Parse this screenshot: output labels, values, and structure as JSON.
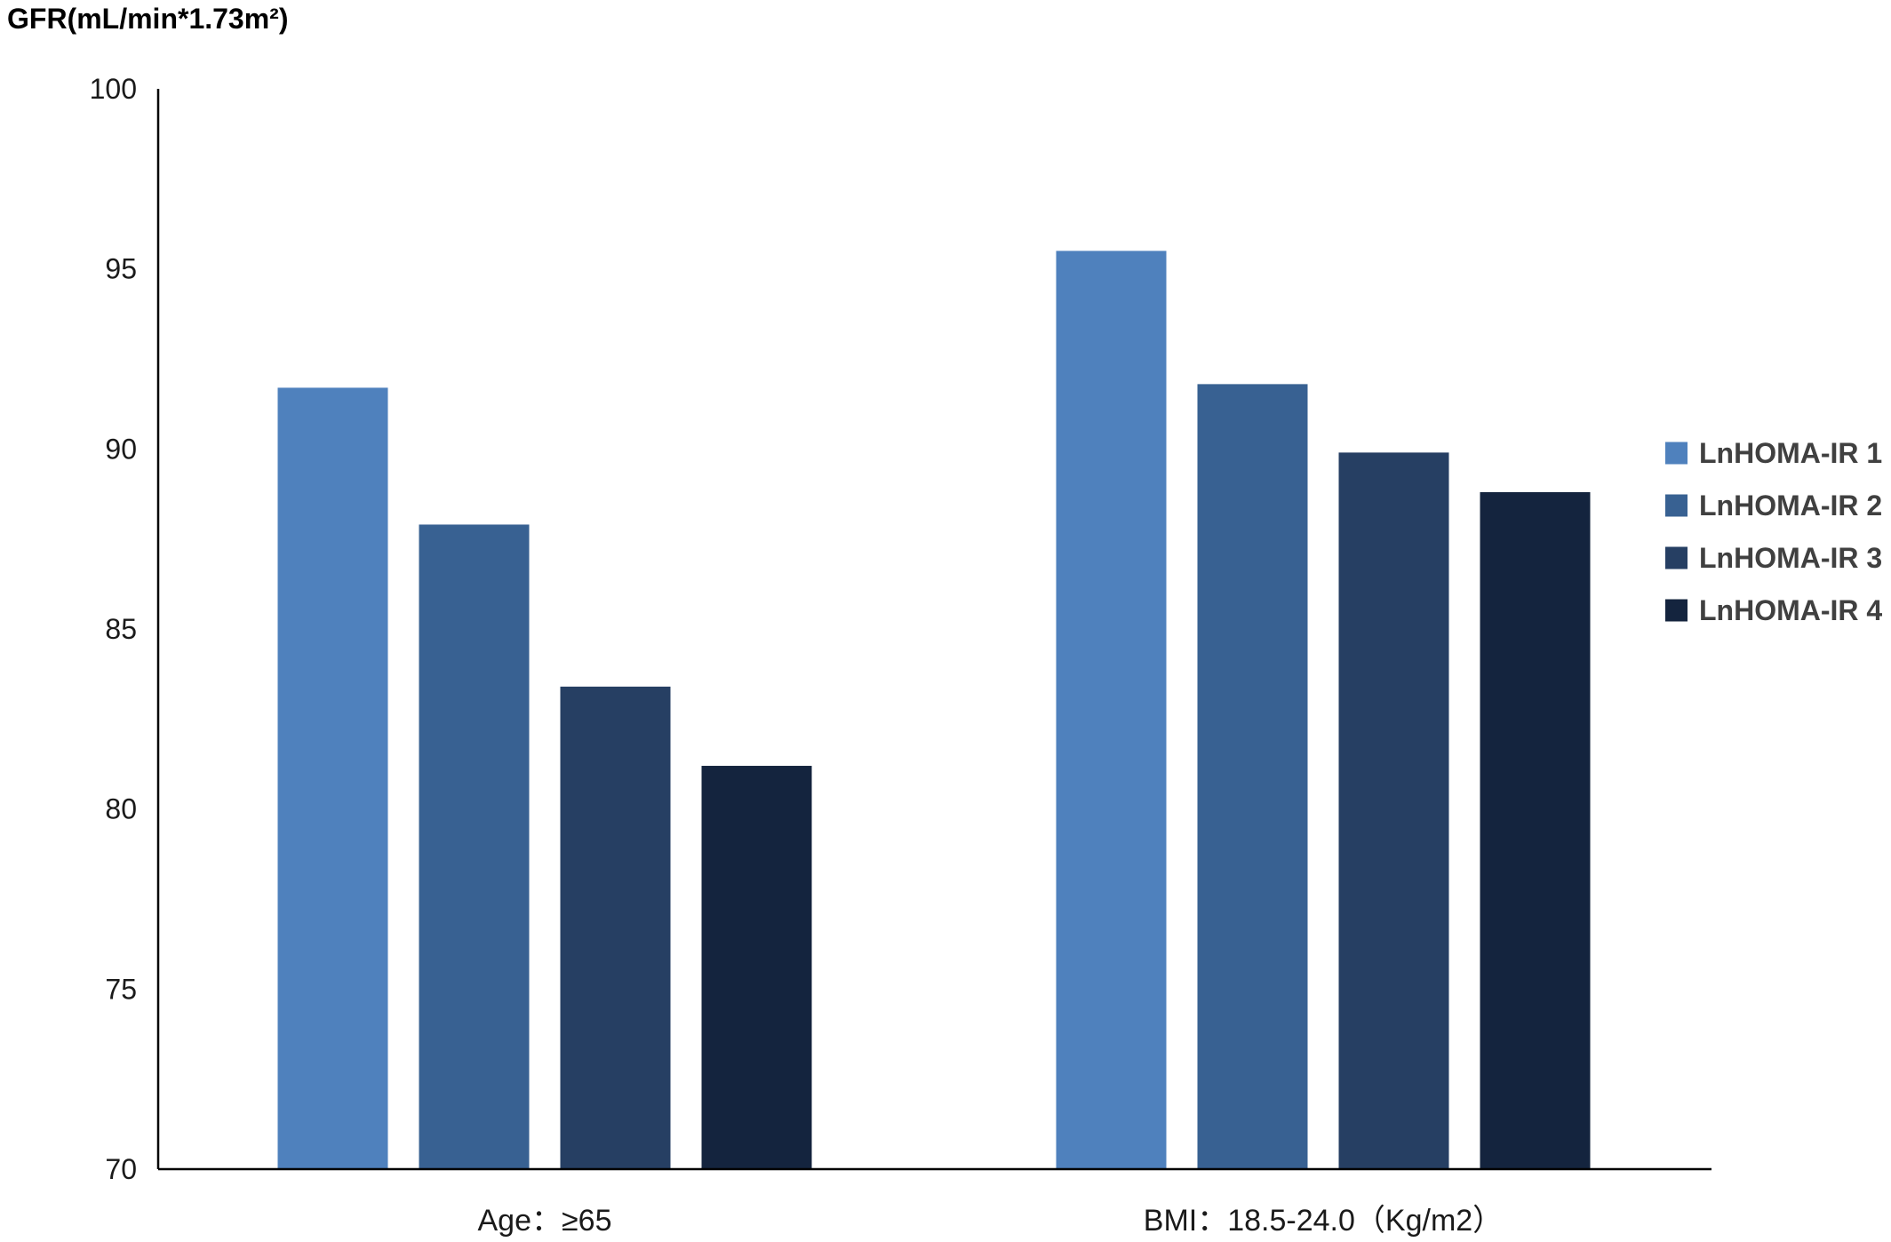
{
  "chart_data": {
    "type": "bar",
    "title": "",
    "ylabel": "GFR(mL/min*1.73m²)",
    "xlabel": "",
    "categories": [
      "Age：≥65",
      "BMI：18.5-24.0（Kg/m2）"
    ],
    "series": [
      {
        "name": "LnHOMA-IR 1",
        "color": "#4f81bd",
        "values": [
          91.7,
          95.5
        ]
      },
      {
        "name": "LnHOMA-IR 2",
        "color": "#386192",
        "values": [
          87.9,
          91.8
        ]
      },
      {
        "name": "LnHOMA-IR 3",
        "color": "#263f63",
        "values": [
          83.4,
          89.9
        ]
      },
      {
        "name": "LnHOMA-IR 4",
        "color": "#14243e",
        "values": [
          81.2,
          88.8
        ]
      }
    ],
    "ylim": [
      70,
      100
    ],
    "yticks": [
      "70",
      "75",
      "80",
      "85",
      "90",
      "95",
      "100"
    ],
    "grid": false,
    "legend_position": "right"
  }
}
